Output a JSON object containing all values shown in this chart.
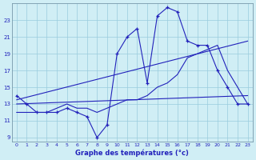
{
  "xlabel": "Graphe des températures (°c)",
  "bg_color": "#d0eef5",
  "line_color": "#2222bb",
  "grid_color": "#99ccdd",
  "ylim": [
    8.5,
    25.0
  ],
  "xlim": [
    -0.5,
    23.5
  ],
  "yticks": [
    9,
    11,
    13,
    15,
    17,
    19,
    21,
    23
  ],
  "xticks": [
    0,
    1,
    2,
    3,
    4,
    5,
    6,
    7,
    8,
    9,
    10,
    11,
    12,
    13,
    14,
    15,
    16,
    17,
    18,
    19,
    20,
    21,
    22,
    23
  ],
  "curve1_x": [
    0,
    1,
    2,
    3,
    4,
    5,
    6,
    7,
    8,
    9,
    10,
    11,
    12,
    13,
    14,
    15,
    16,
    17,
    18,
    19,
    20,
    21,
    22,
    23
  ],
  "curve1_y": [
    14.0,
    13.0,
    12.0,
    12.0,
    12.0,
    12.5,
    12.0,
    11.5,
    9.0,
    10.5,
    19.0,
    21.0,
    22.0,
    15.5,
    23.5,
    24.5,
    24.0,
    20.5,
    20.0,
    20.0,
    17.0,
    15.0,
    13.0,
    13.0
  ],
  "curve2_x": [
    0,
    1,
    2,
    3,
    4,
    5,
    6,
    7,
    8,
    9,
    10,
    11,
    12,
    13,
    14,
    15,
    16,
    17,
    18,
    19,
    20,
    21,
    22,
    23
  ],
  "curve2_y": [
    12.0,
    12.0,
    12.0,
    12.0,
    12.5,
    13.0,
    12.5,
    12.5,
    12.0,
    12.5,
    13.0,
    13.5,
    13.5,
    14.0,
    15.0,
    15.5,
    16.5,
    18.5,
    19.0,
    19.5,
    20.0,
    17.0,
    15.0,
    13.0
  ],
  "trend1_x": [
    0,
    23
  ],
  "trend1_y": [
    13.0,
    14.0
  ],
  "trend2_x": [
    0,
    23
  ],
  "trend2_y": [
    13.5,
    20.5
  ]
}
